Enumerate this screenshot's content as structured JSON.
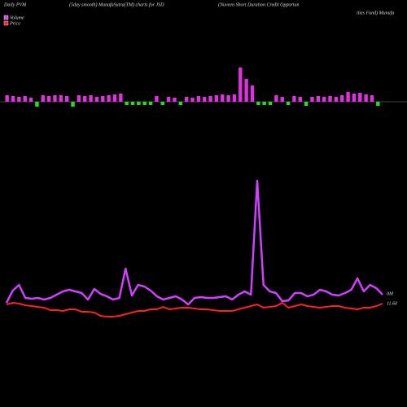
{
  "header": {
    "texts": [
      "Daily PVM",
      "(5day smooth) MunafaSutra(TM) charts for JSD",
      "(Nuveen Short Duration Credit Opportun",
      "ities Fund) Munafa"
    ]
  },
  "chart_data": [
    {
      "type": "bar",
      "up_color": "#e030e0",
      "down_color": "#20e020",
      "values": [
        8,
        7,
        6,
        7,
        5,
        -6,
        8,
        7,
        8,
        8,
        7,
        -6,
        8,
        7,
        8,
        6,
        7,
        8,
        9,
        10,
        -4,
        -4,
        -4,
        -4,
        -4,
        7,
        -4,
        6,
        5,
        -4,
        6,
        5,
        7,
        6,
        7,
        8,
        9,
        8,
        9,
        42,
        28,
        20,
        -4,
        -4,
        -4,
        8,
        6,
        -4,
        7,
        6,
        -5,
        6,
        7,
        6,
        7,
        6,
        8,
        12,
        10,
        11,
        9,
        8,
        -5
      ]
    },
    {
      "type": "line",
      "series": [
        {
          "name": "Volume",
          "color": "#d040ff",
          "values": [
            28,
            43,
            50,
            34,
            33,
            34,
            32,
            34,
            38,
            42,
            44,
            42,
            40,
            32,
            45,
            39,
            36,
            32,
            34,
            70,
            37,
            50,
            48,
            43,
            36,
            32,
            34,
            36,
            32,
            26,
            34,
            35,
            34,
            34,
            35,
            36,
            32,
            38,
            42,
            38,
            178,
            50,
            42,
            40,
            30,
            31,
            40,
            40,
            36,
            38,
            44,
            42,
            38,
            37,
            40,
            44,
            58,
            42,
            50,
            46,
            38
          ]
        },
        {
          "name": "Price",
          "color": "#ff2020",
          "values": [
            26,
            28,
            27,
            25,
            24,
            23,
            22,
            19,
            19,
            18,
            20,
            20,
            17,
            17,
            16,
            12,
            11,
            11,
            12,
            14,
            16,
            18,
            18,
            20,
            20,
            23,
            20,
            21,
            22,
            22,
            21,
            20,
            20,
            19,
            18,
            18,
            18,
            20,
            22,
            24,
            26,
            22,
            23,
            24,
            28,
            22,
            24,
            26,
            24,
            23,
            22,
            23,
            24,
            24,
            22,
            21,
            20,
            22,
            22,
            24,
            27
          ]
        }
      ],
      "annotations": [
        "0M",
        "11.60"
      ]
    }
  ]
}
